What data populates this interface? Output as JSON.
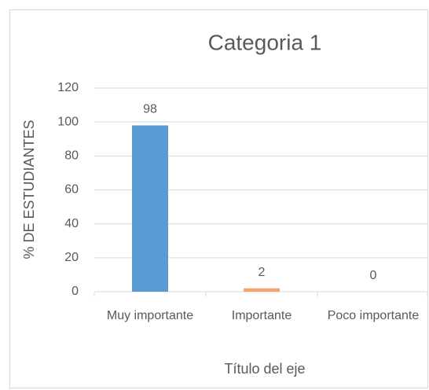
{
  "chart_data": {
    "type": "bar",
    "title": "Categoria 1",
    "y_label": "% DE ESTUDIANTES",
    "x_label": "Título del eje",
    "categories": [
      "Muy importante",
      "Importante",
      "Poco importante"
    ],
    "values": [
      98,
      2,
      0
    ],
    "colors": [
      "#5b9bd5",
      "#f4a46a",
      "#a5a5a5"
    ],
    "ylim": [
      0,
      120
    ],
    "yticks": [
      0,
      20,
      40,
      60,
      80,
      100,
      120
    ],
    "grid": true
  }
}
